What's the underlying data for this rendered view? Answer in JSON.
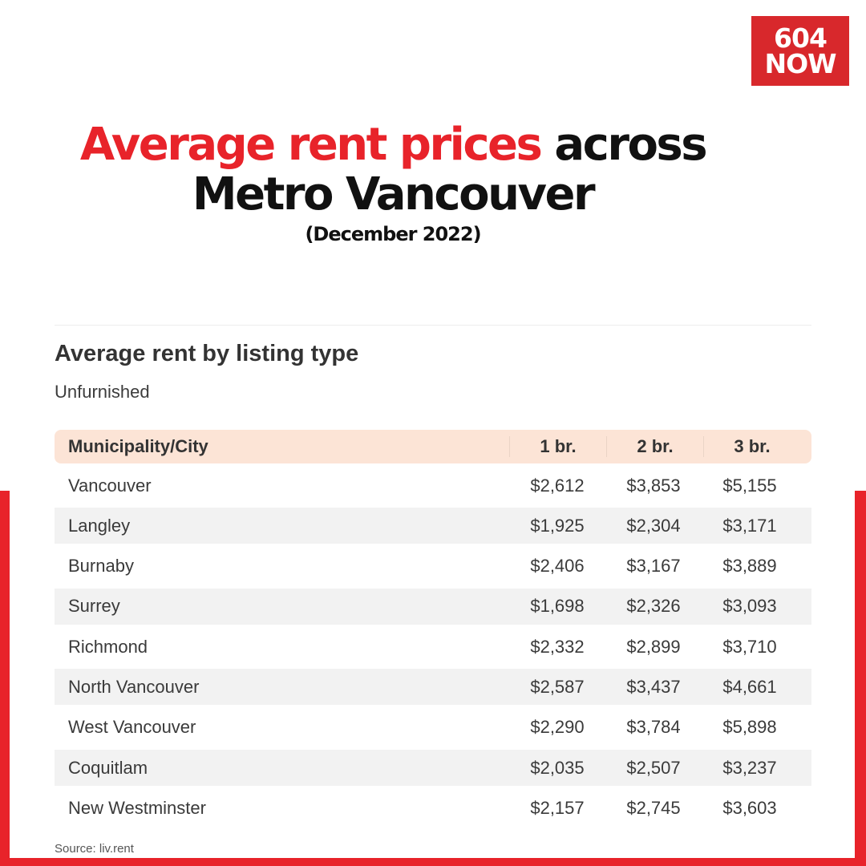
{
  "brand": {
    "line1": "604",
    "line2": "NOW",
    "color": "#d8282c"
  },
  "headline": {
    "highlight": "Average rent prices",
    "rest_line1": " across",
    "line2": "Metro Vancouver",
    "date": "(December 2022)",
    "accent_color": "#e8232a"
  },
  "section": {
    "title": "Average rent by listing type",
    "subtitle": "Unfurnished"
  },
  "source": "Source: liv.rent",
  "chart_data": {
    "type": "table",
    "title": "Average rent by listing type",
    "subtitle": "Unfurnished",
    "columns": [
      "Municipality/City",
      "1 br.",
      "2 br.",
      "3 br."
    ],
    "rows": [
      [
        "Vancouver",
        "$2,612",
        "$3,853",
        "$5,155"
      ],
      [
        "Langley",
        "$1,925",
        "$2,304",
        "$3,171"
      ],
      [
        "Burnaby",
        "$2,406",
        "$3,167",
        "$3,889"
      ],
      [
        "Surrey",
        "$1,698",
        "$2,326",
        "$3,093"
      ],
      [
        "Richmond",
        "$2,332",
        "$2,899",
        "$3,710"
      ],
      [
        "North Vancouver",
        "$2,587",
        "$3,437",
        "$4,661"
      ],
      [
        "West Vancouver",
        "$2,290",
        "$3,784",
        "$5,898"
      ],
      [
        "Coquitlam",
        "$2,035",
        "$2,507",
        "$3,237"
      ],
      [
        "New Westminster",
        "$2,157",
        "$2,745",
        "$3,603"
      ]
    ]
  }
}
